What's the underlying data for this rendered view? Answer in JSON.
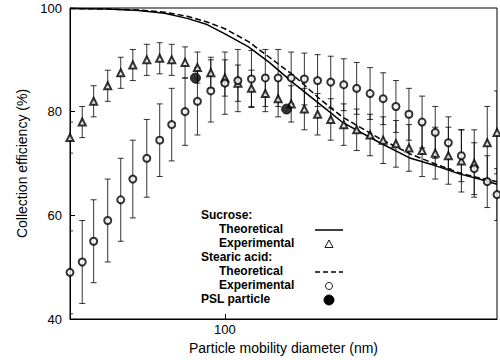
{
  "chart_data": {
    "type": "scatter",
    "x_label": "Particle mobility diameter (nm)",
    "y_label": "Collection efficiency (%)",
    "log": "x",
    "grid": false,
    "legend": "lower center",
    "xlim": [
      40,
      500
    ],
    "xticks": [
      100
    ],
    "ylim": [
      40,
      100
    ],
    "yticks": [
      40,
      60,
      80,
      100
    ],
    "series": [
      {
        "name": "Theoretical",
        "group": "Sucrose:",
        "type": "line",
        "line_style": "solid",
        "color": "#000000",
        "x": [
          40,
          50,
          60,
          70,
          80,
          90,
          100,
          115,
          130,
          150,
          175,
          200,
          250,
          300,
          350,
          400,
          450,
          500
        ],
        "values": [
          99.9,
          99.8,
          99.5,
          99,
          98,
          96.8,
          95,
          92.5,
          89.5,
          85.5,
          81.5,
          78,
          74,
          71,
          69.5,
          68,
          67,
          66
        ]
      },
      {
        "name": "Experimental",
        "group": "Sucrose:",
        "type": "scatter",
        "marker": "open_triangle",
        "color": "#000000",
        "x": [
          40,
          43,
          46,
          50,
          54,
          58,
          63,
          68,
          73,
          79,
          85,
          92,
          100,
          108,
          117,
          127,
          137,
          148,
          160,
          173,
          187,
          202,
          218,
          236,
          255,
          275,
          297,
          321,
          347,
          375,
          405,
          437,
          472,
          500
        ],
        "values": [
          75,
          78,
          82,
          85,
          87.5,
          89,
          90,
          90.3,
          90,
          89.5,
          88.5,
          87.5,
          86.5,
          85.5,
          84.5,
          83.5,
          82.5,
          81.5,
          80.5,
          79.5,
          78.5,
          77.5,
          76.5,
          75.5,
          74.5,
          73.8,
          73,
          72.5,
          72,
          71.5,
          70.5,
          70,
          74,
          76
        ],
        "errors": [
          3,
          3,
          3,
          3,
          3,
          3,
          3,
          3,
          3,
          3,
          3,
          3,
          3.5,
          3.5,
          3.5,
          3.5,
          3.5,
          3.5,
          4,
          4,
          4,
          4,
          4,
          4,
          4.5,
          4.5,
          4.5,
          5,
          5,
          5.5,
          6,
          6.5,
          7,
          8
        ]
      },
      {
        "name": "Theoretical",
        "group": "Stearic acid:",
        "type": "line",
        "line_style": "dashed",
        "color": "#000000",
        "x": [
          40,
          50,
          60,
          70,
          80,
          90,
          100,
          115,
          130,
          150,
          175,
          200,
          250,
          300,
          350,
          400,
          450,
          500
        ],
        "values": [
          99.9,
          99.8,
          99.6,
          99.2,
          98.4,
          97.3,
          96,
          93.5,
          90.5,
          87,
          82.5,
          79,
          74.8,
          71.8,
          69.8,
          68.2,
          67.2,
          66.5
        ]
      },
      {
        "name": "Experimental",
        "group": "Stearic acid:",
        "type": "scatter",
        "marker": "open_circle",
        "color": "#000000",
        "x": [
          40,
          43,
          46,
          50,
          54,
          58,
          63,
          68,
          73,
          79,
          85,
          92,
          100,
          108,
          117,
          127,
          137,
          148,
          160,
          173,
          187,
          202,
          218,
          236,
          255,
          275,
          297,
          321,
          347,
          375,
          405,
          437,
          472,
          500
        ],
        "values": [
          49,
          51,
          55,
          59,
          63,
          67,
          71,
          74.5,
          77.5,
          80,
          82,
          84,
          85.5,
          86,
          86.3,
          86.5,
          86.5,
          86.5,
          86.3,
          86,
          85.7,
          85.2,
          84.5,
          83.5,
          82.5,
          81,
          79.5,
          78,
          76,
          74,
          71.5,
          69,
          66.5,
          64
        ],
        "errors": [
          8,
          8,
          8,
          8,
          8,
          7.5,
          7.5,
          7,
          7,
          6.5,
          6.5,
          6,
          6,
          6,
          5.5,
          5.5,
          5.5,
          5,
          5,
          5,
          5,
          5,
          5,
          5,
          5,
          5,
          5,
          5,
          5,
          5,
          5,
          5,
          5,
          5
        ]
      },
      {
        "name": "PSL particle",
        "type": "scatter",
        "marker": "circle",
        "color": "#000000",
        "x": [
          84,
          144
        ],
        "values": [
          86.5,
          80.5
        ]
      }
    ]
  }
}
